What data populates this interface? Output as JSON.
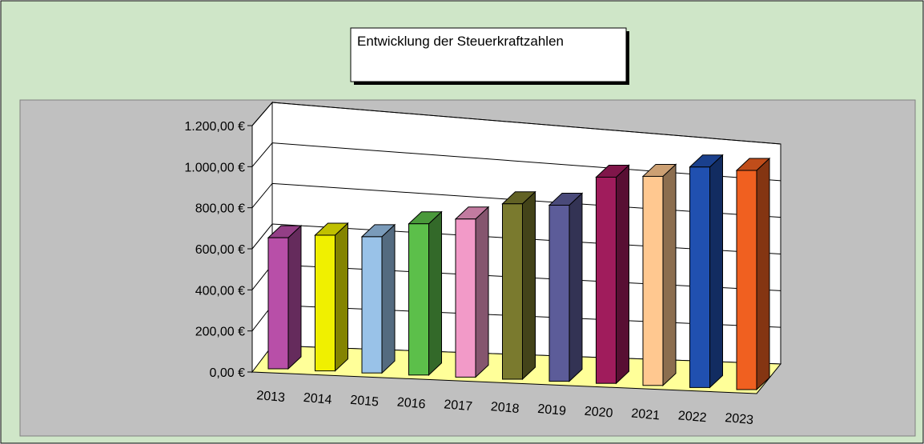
{
  "chart_data": {
    "type": "bar3d",
    "title": "Entwicklung der Steuerkraftzahlen",
    "categories": [
      "2013",
      "2014",
      "2015",
      "2016",
      "2017",
      "2018",
      "2019",
      "2020",
      "2021",
      "2022",
      "2023"
    ],
    "values": [
      640,
      660,
      660,
      730,
      760,
      840,
      840,
      980,
      990,
      1040,
      1030
    ],
    "colors": [
      "#b84fa8",
      "#f0f000",
      "#99c2e8",
      "#5cbf4a",
      "#f29ac8",
      "#7a7a2e",
      "#5c5c99",
      "#a01c5c",
      "#ffc890",
      "#2050b0",
      "#f06020"
    ],
    "ylim": [
      0,
      1200
    ],
    "yticks": [
      {
        "value": 0,
        "label": "0,00 €"
      },
      {
        "value": 200,
        "label": "200,00 €"
      },
      {
        "value": 400,
        "label": "400,00 €"
      },
      {
        "value": 600,
        "label": "600,00 €"
      },
      {
        "value": 800,
        "label": "800,00 €"
      },
      {
        "value": 1000,
        "label": "1.000,00 €"
      },
      {
        "value": 1200,
        "label": "1.200,00 €"
      }
    ],
    "grid": true
  }
}
